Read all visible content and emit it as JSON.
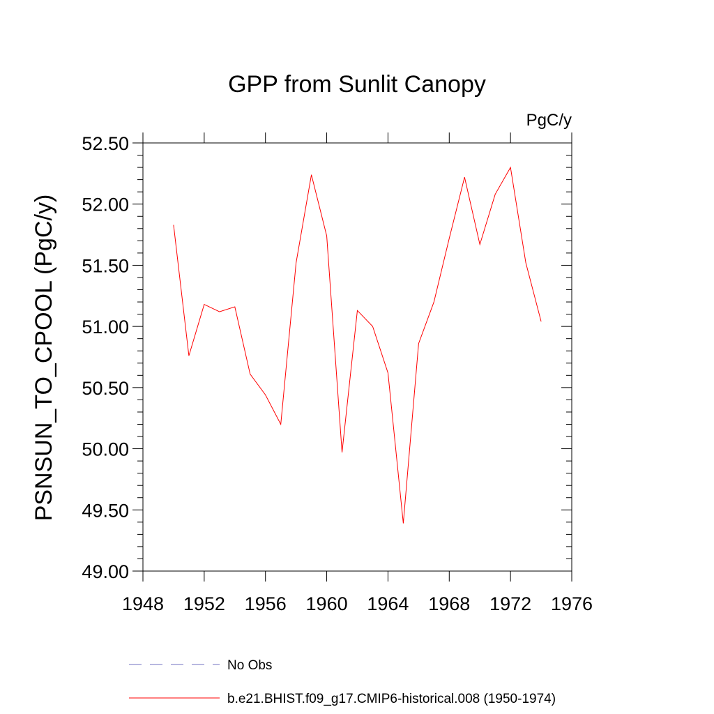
{
  "chart_data": {
    "type": "line",
    "title": "GPP from Sunlit Canopy",
    "units_label": "PgC/y",
    "xlabel": "",
    "ylabel": "PSNSUN_TO_CPOOL  (PgC/y)",
    "xlim": [
      1948,
      1976
    ],
    "ylim": [
      49.0,
      52.5
    ],
    "x_ticks": [
      1948,
      1952,
      1956,
      1960,
      1964,
      1968,
      1972,
      1976
    ],
    "x_tick_labels": [
      "1948",
      "1952",
      "1956",
      "1960",
      "1964",
      "1968",
      "1972",
      "1976"
    ],
    "y_ticks": [
      49.0,
      49.5,
      50.0,
      50.5,
      51.0,
      51.5,
      52.0,
      52.5
    ],
    "y_tick_labels": [
      "49.00",
      "49.50",
      "50.00",
      "50.50",
      "51.00",
      "51.50",
      "52.00",
      "52.50"
    ],
    "grid": false,
    "legend_position": "bottom",
    "series": [
      {
        "name": "b.e21.BHIST.f09_g17.CMIP6-historical.008 (1950-1974)",
        "color": "#ff0000",
        "style": "solid",
        "x": [
          1950,
          1951,
          1952,
          1953,
          1954,
          1955,
          1956,
          1957,
          1958,
          1959,
          1960,
          1961,
          1962,
          1963,
          1964,
          1965,
          1966,
          1967,
          1968,
          1969,
          1970,
          1971,
          1972,
          1973,
          1974
        ],
        "values": [
          51.83,
          50.76,
          51.18,
          51.12,
          51.16,
          50.61,
          50.44,
          50.2,
          51.52,
          52.24,
          51.74,
          49.97,
          51.13,
          51.0,
          50.62,
          49.39,
          50.86,
          51.2,
          51.72,
          52.22,
          51.67,
          52.08,
          52.3,
          51.52,
          51.04
        ]
      }
    ],
    "legend": [
      {
        "label": "No Obs",
        "color": "#7070c0",
        "style": "dashed"
      },
      {
        "label": "b.e21.BHIST.f09_g17.CMIP6-historical.008 (1950-1974)",
        "color": "#ff0000",
        "style": "solid"
      }
    ]
  }
}
